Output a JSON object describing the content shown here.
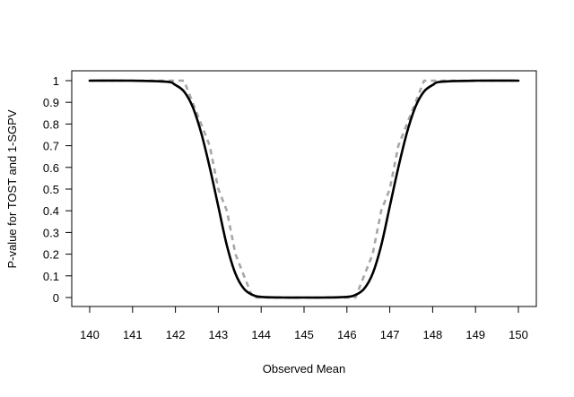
{
  "chart_data": {
    "type": "line",
    "title": "",
    "xlabel": "Observed Mean",
    "ylabel": "P-value for TOST and 1-SGPV",
    "xlim": [
      140,
      150
    ],
    "ylim": [
      0,
      1
    ],
    "x_ticks": [
      140,
      141,
      142,
      143,
      144,
      145,
      146,
      147,
      148,
      149,
      150
    ],
    "y_ticks": [
      0,
      0.1,
      0.2,
      0.3,
      0.4,
      0.5,
      0.6,
      0.7,
      0.8,
      0.9,
      1
    ],
    "x_tick_labels": [
      "140",
      "141",
      "142",
      "143",
      "144",
      "145",
      "146",
      "147",
      "148",
      "149",
      "150"
    ],
    "y_tick_labels": [
      "0",
      "0.1",
      "0.2",
      "0.3",
      "0.4",
      "0.5",
      "0.6",
      "0.7",
      "0.8",
      "0.9",
      "1"
    ],
    "grid": false,
    "series": [
      {
        "style": "solid",
        "color": "#000000",
        "x": [
          140,
          141,
          141.8,
          142,
          142.2,
          142.4,
          142.6,
          142.8,
          143,
          143.2,
          143.4,
          143.6,
          143.8,
          144,
          144.5,
          145,
          145.5,
          146,
          146.2,
          146.4,
          146.6,
          146.8,
          147,
          147.2,
          147.4,
          147.6,
          147.8,
          148,
          148.2,
          149,
          150
        ],
        "y": [
          1,
          1,
          0.995,
          0.98,
          0.95,
          0.88,
          0.76,
          0.6,
          0.42,
          0.24,
          0.11,
          0.04,
          0.012,
          0.003,
          0,
          0,
          0,
          0.003,
          0.012,
          0.04,
          0.11,
          0.24,
          0.42,
          0.6,
          0.76,
          0.88,
          0.95,
          0.98,
          0.995,
          1,
          1
        ]
      },
      {
        "style": "dashed",
        "color": "#a6a6a6",
        "x": [
          140,
          142.2,
          142.4,
          142.6,
          142.8,
          143,
          143.2,
          143.4,
          143.6,
          143.8,
          146.2,
          146.4,
          146.6,
          146.8,
          147,
          147.2,
          147.4,
          147.6,
          147.8,
          150
        ],
        "y": [
          1,
          1,
          0.9,
          0.8,
          0.7,
          0.5,
          0.4,
          0.2,
          0.1,
          0,
          0,
          0.1,
          0.2,
          0.4,
          0.5,
          0.7,
          0.8,
          0.9,
          1,
          1
        ]
      }
    ]
  }
}
